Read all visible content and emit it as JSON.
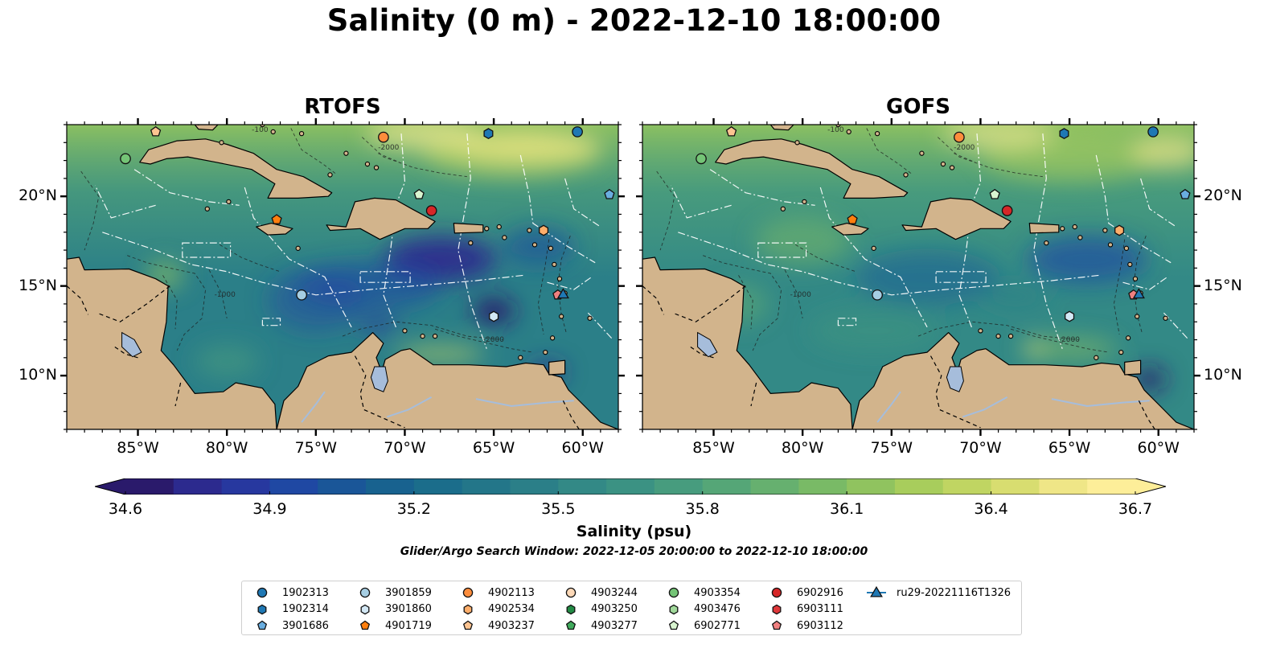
{
  "title": "Salinity (0 m) - 2022-12-10 18:00:00",
  "panels": [
    {
      "id": "rtofs",
      "title": "RTOFS"
    },
    {
      "id": "gofs",
      "title": "GOFS"
    }
  ],
  "map": {
    "extent": {
      "lon_min": -89.0,
      "lon_max": -58.0,
      "lat_min": 7.0,
      "lat_max": 24.0
    },
    "lon_ticks": [
      -85,
      -80,
      -75,
      -70,
      -65,
      -60
    ],
    "lon_tick_labels": [
      "85°W",
      "80°W",
      "75°W",
      "70°W",
      "65°W",
      "60°W"
    ],
    "lat_ticks": [
      10,
      15,
      20
    ],
    "lat_tick_labels": [
      "10°N",
      "15°N",
      "20°N"
    ],
    "bathymetry_labels": [
      "-100",
      "-1000",
      "-2000",
      "-100"
    ],
    "land_color": "#d2b48c",
    "river_lake_color": "#a6bddb"
  },
  "colorbar": {
    "min": 34.6,
    "max": 36.7,
    "tick_labels": [
      "34.6",
      "34.9",
      "35.2",
      "35.5",
      "35.8",
      "36.1",
      "36.4",
      "36.7"
    ],
    "label": "Salinity (psu)",
    "colormap": "haline",
    "colors": [
      "#2a1a6b",
      "#2c2a8e",
      "#27389f",
      "#1f48a3",
      "#1a5698",
      "#18628f",
      "#1b6d8b",
      "#237689",
      "#2b7f88",
      "#338986",
      "#3b9283",
      "#479c7e",
      "#55a677",
      "#66b06f",
      "#79ba66",
      "#90c35f",
      "#a8cd5c",
      "#c0d562",
      "#d8dd70",
      "#efe687",
      "#fdee99"
    ]
  },
  "search_window": "Glider/Argo Search Window: 2022-12-05 20:00:00 to 2022-12-10 18:00:00",
  "legend": [
    {
      "label": "1902313",
      "marker": "circle",
      "color": "#1f78b4"
    },
    {
      "label": "1902314",
      "marker": "hexagon",
      "color": "#1f78b4"
    },
    {
      "label": "3901686",
      "marker": "pentagon",
      "color": "#6aaee0"
    },
    {
      "label": "3901859",
      "marker": "circle",
      "color": "#a6cee3"
    },
    {
      "label": "3901860",
      "marker": "hexagon",
      "color": "#d3e8f5"
    },
    {
      "label": "4901719",
      "marker": "pentagon",
      "color": "#ff7f0e"
    },
    {
      "label": "4902113",
      "marker": "circle",
      "color": "#fd8d3c"
    },
    {
      "label": "4902534",
      "marker": "hexagon",
      "color": "#fdae6b"
    },
    {
      "label": "4903237",
      "marker": "pentagon",
      "color": "#fdc491"
    },
    {
      "label": "4903244",
      "marker": "circle",
      "color": "#fdd9b8"
    },
    {
      "label": "4903250",
      "marker": "hexagon",
      "color": "#238b45"
    },
    {
      "label": "4903277",
      "marker": "pentagon",
      "color": "#41ab5d"
    },
    {
      "label": "4903354",
      "marker": "circle",
      "color": "#74c476"
    },
    {
      "label": "4903476",
      "marker": "hexagon",
      "color": "#a1d99b"
    },
    {
      "label": "6902771",
      "marker": "pentagon",
      "color": "#d9f5d0"
    },
    {
      "label": "6902916",
      "marker": "circle",
      "color": "#d62728"
    },
    {
      "label": "6903111",
      "marker": "hexagon",
      "color": "#e0383a"
    },
    {
      "label": "6903112",
      "marker": "pentagon",
      "color": "#f08080"
    },
    {
      "label": "ru29-20221116T1326",
      "marker": "triangle-line",
      "color": "#1f78b4"
    }
  ],
  "platforms": [
    {
      "id": "1902313",
      "lon": -60.3,
      "lat": 23.6
    },
    {
      "id": "1902314",
      "lon": -65.3,
      "lat": 23.5
    },
    {
      "id": "3901686",
      "lon": -58.5,
      "lat": 20.1
    },
    {
      "id": "3901859",
      "lon": -75.8,
      "lat": 14.5
    },
    {
      "id": "3901860",
      "lon": -65.0,
      "lat": 13.3
    },
    {
      "id": "4901719",
      "lon": -77.2,
      "lat": 18.7
    },
    {
      "id": "4902113",
      "lon": -71.2,
      "lat": 23.3
    },
    {
      "id": "4902534",
      "lon": -62.2,
      "lat": 18.1
    },
    {
      "id": "4903237",
      "lon": -84.0,
      "lat": 23.6
    },
    {
      "id": "4903354",
      "lon": -85.7,
      "lat": 22.1
    },
    {
      "id": "6902771",
      "lon": -69.2,
      "lat": 20.1
    },
    {
      "id": "6902916",
      "lon": -68.5,
      "lat": 19.2
    },
    {
      "id": "6903112",
      "lon": -61.4,
      "lat": 14.5
    },
    {
      "id": "ru29-20221116T1326",
      "lon": -61.1,
      "lat": 14.5
    }
  ]
}
